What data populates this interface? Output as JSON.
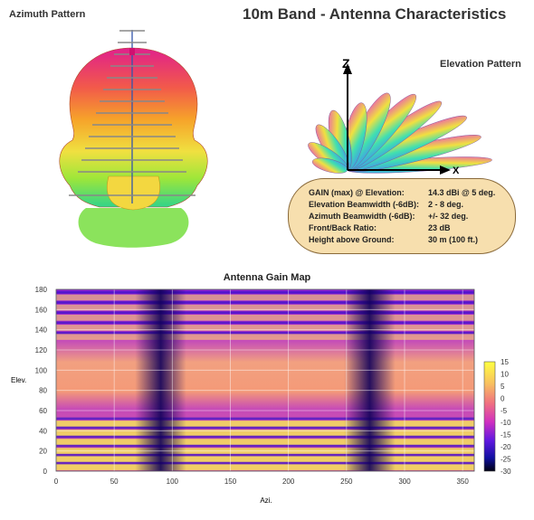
{
  "main_title": "10m Band - Antenna Characteristics",
  "azimuth": {
    "title": "Azimuth Pattern"
  },
  "elevation": {
    "title": "Elevation Pattern",
    "axis_z": "Z",
    "axis_x": "X"
  },
  "specs": [
    {
      "label": "GAIN (max) @ Elevation:",
      "value": "14.3 dBi @ 5 deg."
    },
    {
      "label": "Elevation Beamwidth (-6dB):",
      "value": "2 - 8 deg."
    },
    {
      "label": "Azimuth Beamwidth (-6dB):",
      "value": "+/- 32 deg."
    },
    {
      "label": "Front/Back Ratio:",
      "value": "23 dB"
    },
    {
      "label": "Height above Ground:",
      "value": "30 m (100 ft.)"
    }
  ],
  "chart_data": {
    "type": "heatmap",
    "title": "Antenna Gain Map",
    "xlabel": "Azi.",
    "ylabel": "Elev.",
    "xlim": [
      0,
      360
    ],
    "ylim": [
      0,
      180
    ],
    "xticks": [
      0,
      50,
      100,
      150,
      200,
      250,
      300,
      350
    ],
    "yticks": [
      0,
      20,
      40,
      60,
      80,
      100,
      120,
      140,
      160,
      180
    ],
    "colorbar": {
      "range": [
        -30,
        15
      ],
      "ticks": [
        15,
        10,
        5,
        0,
        -5,
        -10,
        -15,
        -20,
        -25,
        -30
      ]
    },
    "grid": true,
    "nulls_azimuth_deg": [
      90,
      270
    ],
    "peak_gain_dbi": 14.3,
    "peak_elevation_deg": 5
  }
}
